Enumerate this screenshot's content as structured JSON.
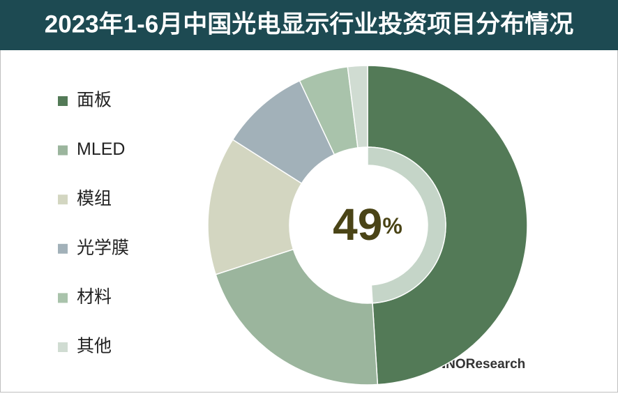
{
  "chart_data": {
    "type": "donut",
    "title": "2023年1-6月中国光电显示行业投资项目分布情况",
    "categories": [
      "面板",
      "MLED",
      "模组",
      "光学膜",
      "材料",
      "其他"
    ],
    "values": [
      49,
      21,
      14,
      9,
      5,
      2
    ],
    "value_labels": [
      "49%",
      null,
      null,
      null,
      null,
      null
    ],
    "colors": [
      "#537a57",
      "#9bb59d",
      "#d3d6c1",
      "#a2b1b9",
      "#a9c3ab",
      "#d0dcd2"
    ],
    "highlight_color": "#c5d5c8",
    "legend": "left",
    "copyright": "Copyright©CINNOResearch"
  }
}
